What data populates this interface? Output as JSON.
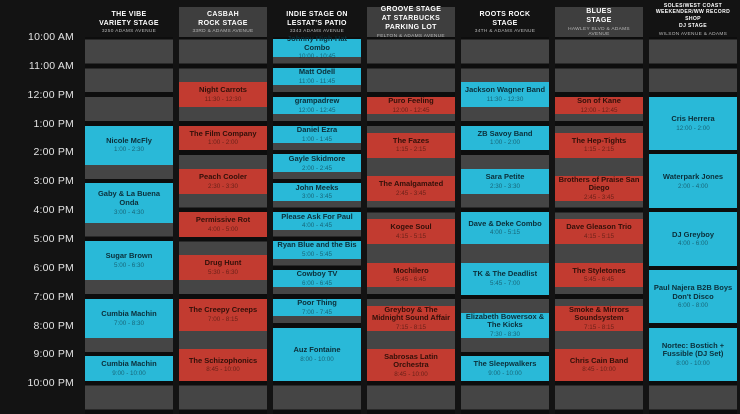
{
  "colors": {
    "background": "#131313",
    "track_gray": "#454545",
    "header_gray": "#3e3e3e",
    "event_cyan": "#29b9d8",
    "event_red": "#c23b30",
    "time_text": "#e4e4e4",
    "header_text": "#ffffff"
  },
  "time_labels": [
    "10:00 AM",
    "11:00 AM",
    "12:00 PM",
    "1:00 PM",
    "2:00 PM",
    "3:00 PM",
    "4:00 PM",
    "5:00 PM",
    "6:00 PM",
    "7:00 PM",
    "8:00 PM",
    "9:00 PM",
    "10:00 PM"
  ],
  "stages": [
    {
      "name_lines": [
        "THE VIBE",
        "VARIETY STAGE"
      ],
      "address": "3250 ADAMS AVENUE",
      "theme": "cyan",
      "header_gray": false,
      "events": [
        {
          "name": "Nicole McFly",
          "time": "1:00 - 2:30",
          "start": 3,
          "end": 4.5
        },
        {
          "name": "Gaby & La Buena Onda",
          "time": "3:00 - 4:30",
          "start": 5,
          "end": 6.5
        },
        {
          "name": "Sugar Brown",
          "time": "5:00 - 6:30",
          "start": 7,
          "end": 8.5
        },
        {
          "name": "Cumbia Machin",
          "time": "7:00 - 8:30",
          "start": 9,
          "end": 10.5
        },
        {
          "name": "Cumbia Machin",
          "time": "9:00 - 10:00",
          "start": 11,
          "end": 12
        }
      ]
    },
    {
      "name_lines": [
        "CASBAH",
        "ROCK STAGE"
      ],
      "address": "33RD & ADAMS AVENUE",
      "theme": "red",
      "header_gray": true,
      "events": [
        {
          "name": "Night Carrots",
          "time": "11:30 - 12:30",
          "start": 1.5,
          "end": 2.5
        },
        {
          "name": "The Film Company",
          "time": "1:00 - 2:00",
          "start": 3,
          "end": 4
        },
        {
          "name": "Peach Cooler",
          "time": "2:30 - 3:30",
          "start": 4.5,
          "end": 5.5
        },
        {
          "name": "Permissive Rot",
          "time": "4:00 - 5:00",
          "start": 6,
          "end": 7
        },
        {
          "name": "Drug Hunt",
          "time": "5:30 - 6:30",
          "start": 7.5,
          "end": 8.5
        },
        {
          "name": "The Creepy Creeps",
          "time": "7:00 - 8:15",
          "start": 9,
          "end": 10.25
        },
        {
          "name": "The Schizophonics",
          "time": "8:45 - 10:00",
          "start": 10.75,
          "end": 12
        }
      ]
    },
    {
      "name_lines": [
        "INDIE STAGE ON",
        "LESTAT'S PATIO"
      ],
      "address": "3343 ADAMS AVENUE",
      "theme": "cyan",
      "header_gray": false,
      "events": [
        {
          "name": "Johnny High-Hat Combo",
          "time": "10:00 - 10:45",
          "start": 0,
          "end": 0.75
        },
        {
          "name": "Matt Odell",
          "time": "11:00 - 11:45",
          "start": 1,
          "end": 1.75
        },
        {
          "name": "grampadrew",
          "time": "12:00 - 12:45",
          "start": 2,
          "end": 2.75
        },
        {
          "name": "Daniel Ezra",
          "time": "1:00 - 1:45",
          "start": 3,
          "end": 3.75
        },
        {
          "name": "Gayle Skidmore",
          "time": "2:00 - 2:45",
          "start": 4,
          "end": 4.75
        },
        {
          "name": "John Meeks",
          "time": "3:00 - 3:45",
          "start": 5,
          "end": 5.75
        },
        {
          "name": "Please Ask For Paul",
          "time": "4:00 - 4:45",
          "start": 6,
          "end": 6.75
        },
        {
          "name": "Ryan Blue and the Bis",
          "time": "5:00 - 5:45",
          "start": 7,
          "end": 7.75
        },
        {
          "name": "Cowboy TV",
          "time": "6:00 - 6:45",
          "start": 8,
          "end": 8.75
        },
        {
          "name": "Poor Thing",
          "time": "7:00 - 7:45",
          "start": 9,
          "end": 9.75
        },
        {
          "name": "Auz Fontaine",
          "time": "8:00 - 10:00",
          "start": 10,
          "end": 12
        }
      ]
    },
    {
      "name_lines": [
        "GROOVE STAGE",
        "AT STARBUCKS",
        "PARKING LOT"
      ],
      "address": "FELTON & ADAMS AVENUE",
      "theme": "red",
      "header_gray": true,
      "events": [
        {
          "name": "Puro Feeling",
          "time": "12:00 - 12:45",
          "start": 2,
          "end": 2.75
        },
        {
          "name": "The Fazes",
          "time": "1:15 - 2:15",
          "start": 3.25,
          "end": 4.25
        },
        {
          "name": "The Amalgamated",
          "time": "2:45 - 3:45",
          "start": 4.75,
          "end": 5.75
        },
        {
          "name": "Kogee Soul",
          "time": "4:15 - 5:15",
          "start": 6.25,
          "end": 7.25
        },
        {
          "name": "Mochilero",
          "time": "5:45 - 6:45",
          "start": 7.75,
          "end": 8.75
        },
        {
          "name": "Greyboy & The Midnight Sound Affair",
          "time": "7:15 - 8:15",
          "start": 9.25,
          "end": 10.25
        },
        {
          "name": "Sabrosas Latin Orchestra",
          "time": "8:45 - 10:00",
          "start": 10.75,
          "end": 12
        }
      ]
    },
    {
      "name_lines": [
        "ROOTS ROCK",
        "STAGE"
      ],
      "address": "34TH & ADAMS AVENUE",
      "theme": "cyan",
      "header_gray": false,
      "events": [
        {
          "name": "Jackson Wagner Band",
          "time": "11:30 - 12:30",
          "start": 1.5,
          "end": 2.5
        },
        {
          "name": "ZB Savoy Band",
          "time": "1:00 - 2:00",
          "start": 3,
          "end": 4
        },
        {
          "name": "Sara Petite",
          "time": "2:30 - 3:30",
          "start": 4.5,
          "end": 5.5
        },
        {
          "name": "Dave & Deke Combo",
          "time": "4:00 - 5:15",
          "start": 6,
          "end": 7.25
        },
        {
          "name": "TK & The Deadlist",
          "time": "5:45 - 7:00",
          "start": 7.75,
          "end": 9
        },
        {
          "name": "Elizabeth Bowersox & The Kicks",
          "time": "7:30 - 8:30",
          "start": 9.5,
          "end": 10.5
        },
        {
          "name": "The Sleepwalkers",
          "time": "9:00 - 10:00",
          "start": 11,
          "end": 12
        }
      ]
    },
    {
      "name_lines": [
        "BLUES",
        "STAGE"
      ],
      "address": "HAWLEY BLVD & ADAMS AVENUE",
      "theme": "red",
      "header_gray": true,
      "events": [
        {
          "name": "Son of Kane",
          "time": "12:00 - 12:45",
          "start": 2,
          "end": 2.75
        },
        {
          "name": "The Hep-Tights",
          "time": "1:15 - 2:15",
          "start": 3.25,
          "end": 4.25
        },
        {
          "name": "Brothers of Praise San Diego",
          "time": "2:45 - 3:45",
          "start": 4.75,
          "end": 5.75
        },
        {
          "name": "Dave Gleason Trio",
          "time": "4:15 - 5:15",
          "start": 6.25,
          "end": 7.25
        },
        {
          "name": "The Styletones",
          "time": "5:45 - 6:45",
          "start": 7.75,
          "end": 8.75
        },
        {
          "name": "Smoke & Mirrors Soundsystem",
          "time": "7:15 - 8:15",
          "start": 9.25,
          "end": 10.25
        },
        {
          "name": "Chris Cain Band",
          "time": "8:45 - 10:00",
          "start": 10.75,
          "end": 12
        }
      ]
    },
    {
      "name_lines": [
        "SOLES/WEST COAST",
        "WEEKENDER/WW RECORD SHOP",
        "DJ STAGE"
      ],
      "address": "WILSON AVENUE & ADAMS AVENUE",
      "theme": "cyan",
      "header_gray": false,
      "small_header": true,
      "events": [
        {
          "name": "Cris Herrera",
          "time": "12:00 - 2:00",
          "start": 2,
          "end": 4
        },
        {
          "name": "Waterpark Jones",
          "time": "2:00 - 4:00",
          "start": 4,
          "end": 6
        },
        {
          "name": "DJ Greyboy",
          "time": "4:00 - 6:00",
          "start": 6,
          "end": 8
        },
        {
          "name": "Paul Najera B2B Boys Don't Disco",
          "time": "6:00 - 8:00",
          "start": 8,
          "end": 10
        },
        {
          "name": "Nortec: Bostich + Fussible (DJ Set)",
          "time": "8:00 - 10:00",
          "start": 10,
          "end": 12
        }
      ]
    }
  ]
}
